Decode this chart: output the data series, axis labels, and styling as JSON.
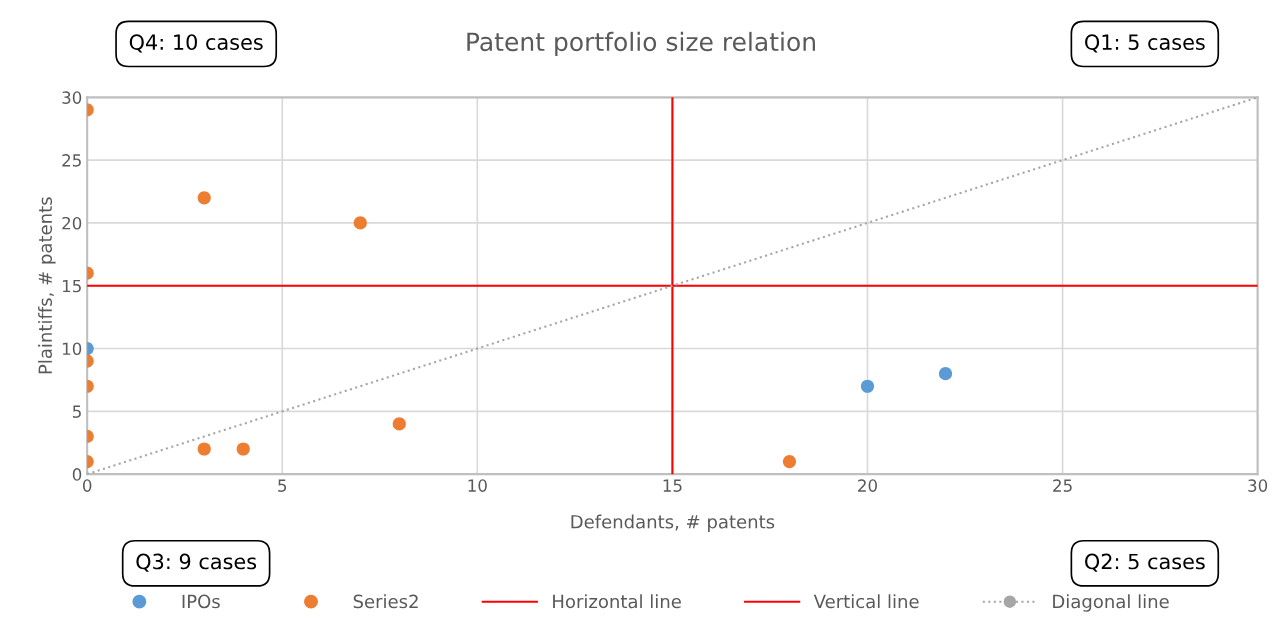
{
  "chart_data": {
    "type": "scatter",
    "title": "Patent portfolio size relation",
    "xlabel": "Defendants, # patents",
    "ylabel": "Plaintiffs, # patents",
    "annotations": [
      "Q4: 10 cases",
      "Q1: 5 cases",
      "Q3: 9 cases",
      "Q2: 5 cases"
    ],
    "series": [
      {
        "name": "IPOs",
        "color": "#5b9bd5",
        "x": [
          0,
          20,
          22
        ],
        "values": [
          10,
          7,
          8
        ]
      },
      {
        "name": "Series2",
        "color": "#ed7d31",
        "x": [
          0,
          3,
          7,
          0,
          0,
          0,
          0,
          0,
          3,
          4,
          8,
          18
        ],
        "values": [
          29,
          22,
          20,
          16,
          9,
          7,
          3,
          1,
          2,
          2,
          4,
          1
        ]
      },
      {
        "name": "Horizontal line",
        "type": "line",
        "color": "#ff0000",
        "line_style": "solid",
        "marker": "none",
        "x": [
          0,
          30
        ],
        "values": [
          15,
          15
        ]
      },
      {
        "name": "Vertical line",
        "type": "line",
        "color": "#ff0000",
        "line_style": "solid",
        "marker": "none",
        "x": [
          15,
          15
        ],
        "values": [
          0,
          30
        ]
      },
      {
        "name": "Diagonal line",
        "type": "line",
        "color": "#a6a6a6",
        "line_style": "dotted",
        "marker": "none",
        "x": [
          0,
          30
        ],
        "values": [
          0,
          30
        ]
      }
    ],
    "xlim": [
      0,
      30
    ],
    "xticks": [
      0,
      5,
      10,
      15,
      20,
      25,
      30
    ],
    "ylim": [
      0,
      30
    ],
    "yticks": [
      0,
      5,
      10,
      15,
      20,
      25,
      30
    ],
    "grid": true,
    "legend": "bottom",
    "marker": "circle"
  }
}
